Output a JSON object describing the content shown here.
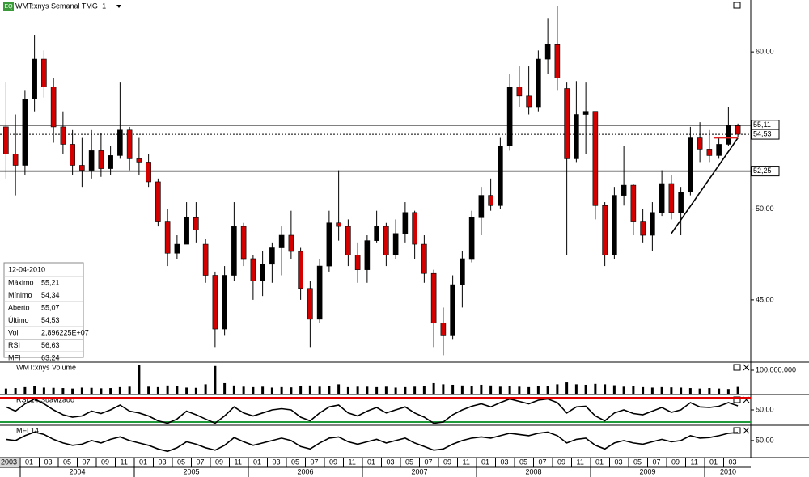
{
  "header": {
    "icon": "EQ",
    "title": "WMT:xnys Semanal TMG+1"
  },
  "info_box": {
    "date": "12-04-2010",
    "rows": [
      {
        "label": "Máximo",
        "value": "55,21"
      },
      {
        "label": "Mínimo",
        "value": "54,34"
      },
      {
        "label": "Aberto",
        "value": "55,07"
      },
      {
        "label": "Último",
        "value": "54,53"
      },
      {
        "label": "Vol",
        "value": "2,896225E+07"
      },
      {
        "label": "RSI",
        "value": "56,63"
      },
      {
        "label": "MFI",
        "value": "63,24"
      }
    ]
  },
  "chart_data": {
    "type": "candlestick",
    "log_scale": true,
    "categories": [
      "2003-11",
      "2003-12",
      "2004-01",
      "2004-02",
      "2004-03",
      "2004-04",
      "2004-05",
      "2004-06",
      "2004-07",
      "2004-08",
      "2004-09",
      "2004-10",
      "2004-11",
      "2004-12",
      "2005-01",
      "2005-02",
      "2005-03",
      "2005-04",
      "2005-05",
      "2005-06",
      "2005-07",
      "2005-08",
      "2005-09",
      "2005-10",
      "2005-11",
      "2005-12",
      "2006-01",
      "2006-02",
      "2006-03",
      "2006-04",
      "2006-05",
      "2006-06",
      "2006-07",
      "2006-08",
      "2006-09",
      "2006-10",
      "2006-11",
      "2006-12",
      "2007-01",
      "2007-02",
      "2007-03",
      "2007-04",
      "2007-05",
      "2007-06",
      "2007-07",
      "2007-08",
      "2007-09",
      "2007-10",
      "2007-11",
      "2007-12",
      "2008-01",
      "2008-02",
      "2008-03",
      "2008-04",
      "2008-05",
      "2008-06",
      "2008-07",
      "2008-08",
      "2008-09",
      "2008-10",
      "2008-11",
      "2008-12",
      "2009-01",
      "2009-02",
      "2009-03",
      "2009-04",
      "2009-05",
      "2009-06",
      "2009-07",
      "2009-08",
      "2009-09",
      "2009-10",
      "2009-11",
      "2009-12",
      "2010-01",
      "2010-02",
      "2010-03",
      "2010-04"
    ],
    "open": [
      55.0,
      53.3,
      52.6,
      56.8,
      59.5,
      57.6,
      55.0,
      53.9,
      52.6,
      52.3,
      53.5,
      52.4,
      53.2,
      54.8,
      53.0,
      52.8,
      51.6,
      49.3,
      47.5,
      48.0,
      49.5,
      48.0,
      46.3,
      43.5,
      46.3,
      49.0,
      47.2,
      46.0,
      46.9,
      47.8,
      48.5,
      47.6,
      45.6,
      44.0,
      46.8,
      49.2,
      49.0,
      47.4,
      46.6,
      48.2,
      49.0,
      47.4,
      48.6,
      49.8,
      48.0,
      46.4,
      43.8,
      43.2,
      45.8,
      47.2,
      49.5,
      50.8,
      50.2,
      53.8,
      57.6,
      57.0,
      56.3,
      59.5,
      60.5,
      57.5,
      53.0,
      55.8,
      56.0,
      50.2,
      47.4,
      50.8,
      51.4,
      49.3,
      48.5,
      49.8,
      51.5,
      49.8,
      51.0,
      54.3,
      53.6,
      53.2,
      53.9,
      55.07
    ],
    "high": [
      57.9,
      55.8,
      57.4,
      61.2,
      60.1,
      58.2,
      56.0,
      54.8,
      54.3,
      54.8,
      54.6,
      53.8,
      57.9,
      55.0,
      54.3,
      53.3,
      51.8,
      50.0,
      48.5,
      50.4,
      50.4,
      48.3,
      46.5,
      46.8,
      50.4,
      49.2,
      47.4,
      47.6,
      48.1,
      49.0,
      49.9,
      47.8,
      46.0,
      47.2,
      49.9,
      52.3,
      49.4,
      48.1,
      48.5,
      49.9,
      49.2,
      49.4,
      50.4,
      49.9,
      48.5,
      46.6,
      44.6,
      46.3,
      47.6,
      49.9,
      51.3,
      51.8,
      54.3,
      58.5,
      59.0,
      59.0,
      60.1,
      62.4,
      63.3,
      57.9,
      58.0,
      57.9,
      56.0,
      50.4,
      51.3,
      53.8,
      51.5,
      50.0,
      50.4,
      52.3,
      52.0,
      51.3,
      55.0,
      55.3,
      54.8,
      54.3,
      56.3,
      55.21
    ],
    "low": [
      51.8,
      50.8,
      52.0,
      56.0,
      56.9,
      54.0,
      53.3,
      52.0,
      51.3,
      51.8,
      51.9,
      52.0,
      53.0,
      52.3,
      52.0,
      51.3,
      49.0,
      46.8,
      47.2,
      48.1,
      48.1,
      45.9,
      42.6,
      43.2,
      46.0,
      46.8,
      45.0,
      45.2,
      45.9,
      46.3,
      47.2,
      45.0,
      42.6,
      43.8,
      46.5,
      48.2,
      46.8,
      45.9,
      45.9,
      48.1,
      46.8,
      47.2,
      48.1,
      47.2,
      45.9,
      42.6,
      42.2,
      43.0,
      44.6,
      47.0,
      48.5,
      49.9,
      50.0,
      53.5,
      56.3,
      55.8,
      56.0,
      58.5,
      57.4,
      47.4,
      52.8,
      53.3,
      49.4,
      46.8,
      47.2,
      50.2,
      48.5,
      48.1,
      47.6,
      49.6,
      49.4,
      48.5,
      50.8,
      52.8,
      52.8,
      53.0,
      53.8,
      54.34
    ],
    "close": [
      53.3,
      52.6,
      56.8,
      59.5,
      57.6,
      55.0,
      53.9,
      52.6,
      52.3,
      53.5,
      52.4,
      53.2,
      54.8,
      53.0,
      52.8,
      51.6,
      49.3,
      47.5,
      48.0,
      49.5,
      48.8,
      46.3,
      43.5,
      46.3,
      49.0,
      47.2,
      46.0,
      46.9,
      47.8,
      48.5,
      47.6,
      45.6,
      44.0,
      46.8,
      49.2,
      49.0,
      47.4,
      46.6,
      48.2,
      49.0,
      47.4,
      48.6,
      49.8,
      48.0,
      46.4,
      43.8,
      43.2,
      45.8,
      47.2,
      49.5,
      50.8,
      50.2,
      53.8,
      57.6,
      57.0,
      56.3,
      59.5,
      60.5,
      58.2,
      53.0,
      55.8,
      56.0,
      50.2,
      47.4,
      50.8,
      51.4,
      49.3,
      48.5,
      49.8,
      51.5,
      49.8,
      51.0,
      54.3,
      53.6,
      53.2,
      53.9,
      55.1,
      54.53
    ],
    "up_color": "#000000",
    "down_color": "#d40000",
    "ylim": [
      41.9,
      63.6
    ],
    "yticks": [
      {
        "value": 45,
        "label": "45,00"
      },
      {
        "value": 50,
        "label": "50,00"
      },
      {
        "value": 60,
        "label": "60,00"
      }
    ],
    "levels": [
      {
        "value": 55.11,
        "label": "55,11",
        "style": "solid"
      },
      {
        "value": 54.53,
        "label": "54,53",
        "style": "dotted"
      },
      {
        "value": 52.25,
        "label": "52,25",
        "style": "solid"
      }
    ],
    "trendline": {
      "x": [
        "2009-09",
        "2010-04"
      ],
      "values": [
        48.6,
        54.3
      ]
    },
    "marker_line": {
      "x": [
        "2010-02",
        "2010-04"
      ],
      "value": 54.3,
      "color": "#e02020"
    },
    "panels": [
      {
        "type": "bar",
        "title": "WMT:xnys Volume",
        "color": "#000000",
        "ylim": [
          0,
          131000000
        ],
        "yticks": [
          {
            "value": 100000000,
            "label": "100.000.000"
          }
        ],
        "values": [
          22000000,
          24000000,
          28000000,
          32000000,
          26000000,
          25000000,
          24000000,
          22000000,
          26000000,
          25000000,
          23000000,
          24000000,
          28000000,
          30000000,
          124000000,
          30000000,
          28000000,
          35000000,
          32000000,
          26000000,
          25000000,
          40000000,
          118000000,
          45000000,
          35000000,
          30000000,
          28000000,
          30000000,
          26000000,
          28000000,
          27000000,
          32000000,
          35000000,
          30000000,
          32000000,
          40000000,
          28000000,
          30000000,
          30000000,
          28000000,
          30000000,
          26000000,
          28000000,
          30000000,
          34000000,
          45000000,
          40000000,
          38000000,
          35000000,
          32000000,
          38000000,
          35000000,
          30000000,
          32000000,
          30000000,
          28000000,
          32000000,
          34000000,
          40000000,
          48000000,
          40000000,
          38000000,
          42000000,
          40000000,
          36000000,
          30000000,
          32000000,
          28000000,
          26000000,
          28000000,
          27000000,
          26000000,
          24000000,
          22000000,
          24000000,
          22000000,
          20000000,
          28962250
        ]
      },
      {
        "type": "line",
        "title": "RSI 14 Suavizado",
        "color": "#000000",
        "ylim": [
          26,
          74
        ],
        "yticks": [
          {
            "value": 50,
            "label": "50,00"
          }
        ],
        "guides": [
          {
            "value": 70,
            "color": "#e00000"
          },
          {
            "value": 30,
            "color": "#1f9a3a"
          }
        ],
        "values": [
          55,
          48,
          60,
          68,
          60,
          50,
          42,
          38,
          40,
          48,
          44,
          50,
          58,
          48,
          45,
          40,
          32,
          28,
          35,
          48,
          42,
          35,
          28,
          40,
          55,
          45,
          40,
          45,
          50,
          52,
          50,
          38,
          32,
          45,
          55,
          58,
          45,
          40,
          48,
          54,
          45,
          50,
          55,
          45,
          38,
          28,
          30,
          42,
          50,
          56,
          60,
          55,
          62,
          68,
          64,
          60,
          66,
          68,
          62,
          45,
          55,
          56,
          40,
          32,
          45,
          50,
          44,
          42,
          48,
          54,
          46,
          50,
          62,
          55,
          54,
          56,
          62,
          56.63
        ]
      },
      {
        "type": "line",
        "title": "MFI 14",
        "color": "#000000",
        "ylim": [
          23,
          74
        ],
        "yticks": [
          {
            "value": 50,
            "label": "50,00"
          }
        ],
        "values": [
          52,
          50,
          58,
          64,
          60,
          52,
          46,
          42,
          44,
          50,
          46,
          52,
          56,
          50,
          46,
          42,
          36,
          32,
          38,
          48,
          44,
          38,
          34,
          42,
          55,
          48,
          42,
          46,
          50,
          54,
          50,
          40,
          36,
          46,
          54,
          56,
          48,
          44,
          48,
          52,
          46,
          50,
          54,
          46,
          40,
          34,
          36,
          44,
          50,
          54,
          56,
          54,
          58,
          62,
          60,
          58,
          62,
          64,
          58,
          46,
          52,
          54,
          42,
          36,
          46,
          50,
          46,
          44,
          48,
          52,
          48,
          50,
          58,
          54,
          55,
          58,
          62,
          63.24
        ]
      }
    ],
    "x_start_label": "2003",
    "xticks": [
      {
        "value": "2004-01",
        "label": "01"
      },
      {
        "value": "2004-03",
        "label": "03"
      },
      {
        "value": "2004-05",
        "label": "05"
      },
      {
        "value": "2004-07",
        "label": "07"
      },
      {
        "value": "2004-09",
        "label": "09"
      },
      {
        "value": "2004-11",
        "label": "11"
      },
      {
        "value": "2005-01",
        "label": "01"
      },
      {
        "value": "2005-03",
        "label": "03"
      },
      {
        "value": "2005-05",
        "label": "05"
      },
      {
        "value": "2005-07",
        "label": "07"
      },
      {
        "value": "2005-09",
        "label": "09"
      },
      {
        "value": "2005-11",
        "label": "11"
      },
      {
        "value": "2006-01",
        "label": "01"
      },
      {
        "value": "2006-03",
        "label": "03"
      },
      {
        "value": "2006-05",
        "label": "05"
      },
      {
        "value": "2006-07",
        "label": "07"
      },
      {
        "value": "2006-09",
        "label": "09"
      },
      {
        "value": "2006-11",
        "label": "11"
      },
      {
        "value": "2007-01",
        "label": "01"
      },
      {
        "value": "2007-03",
        "label": "03"
      },
      {
        "value": "2007-05",
        "label": "05"
      },
      {
        "value": "2007-07",
        "label": "07"
      },
      {
        "value": "2007-09",
        "label": "09"
      },
      {
        "value": "2007-11",
        "label": "11"
      },
      {
        "value": "2008-01",
        "label": "01"
      },
      {
        "value": "2008-03",
        "label": "03"
      },
      {
        "value": "2008-05",
        "label": "05"
      },
      {
        "value": "2008-07",
        "label": "07"
      },
      {
        "value": "2008-09",
        "label": "09"
      },
      {
        "value": "2008-11",
        "label": "11"
      },
      {
        "value": "2009-01",
        "label": "01"
      },
      {
        "value": "2009-03",
        "label": "03"
      },
      {
        "value": "2009-05",
        "label": "05"
      },
      {
        "value": "2009-07",
        "label": "07"
      },
      {
        "value": "2009-09",
        "label": "09"
      },
      {
        "value": "2009-11",
        "label": "11"
      },
      {
        "value": "2010-01",
        "label": "01"
      },
      {
        "value": "2010-03",
        "label": "03"
      }
    ],
    "year_ticks": [
      2004,
      2005,
      2006,
      2007,
      2008,
      2009,
      2010
    ]
  }
}
